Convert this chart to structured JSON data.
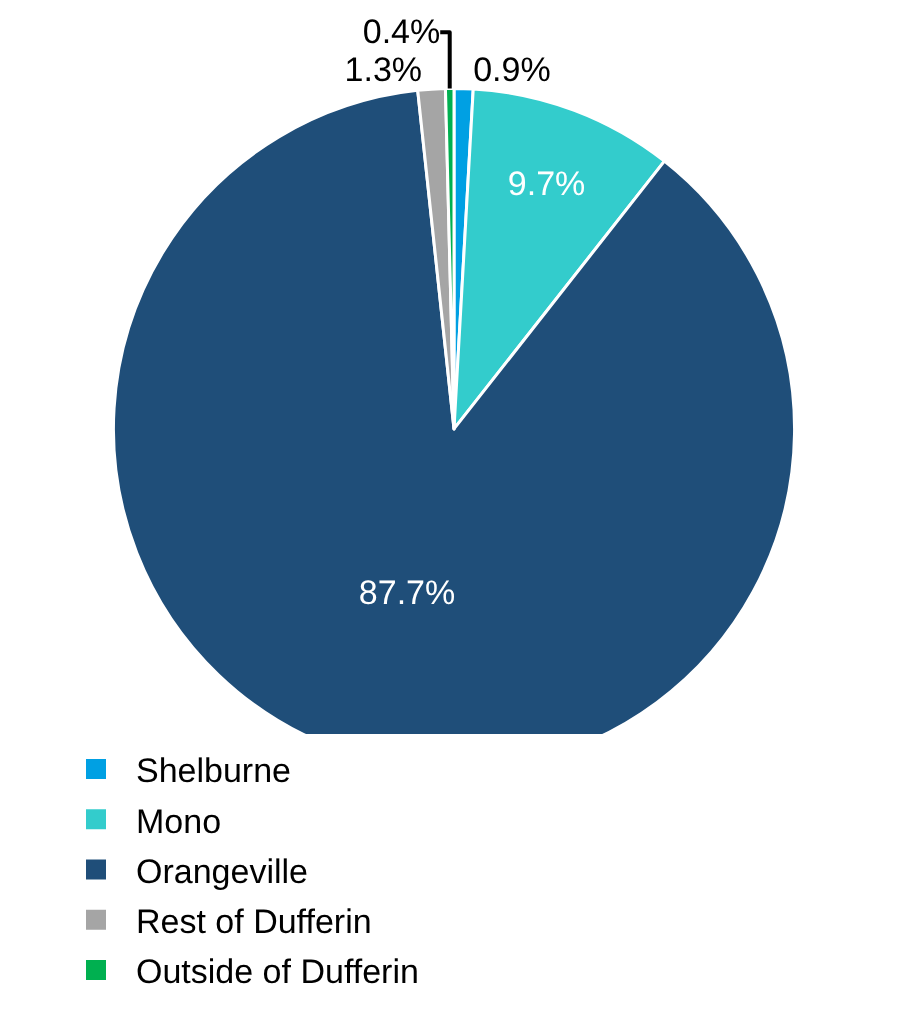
{
  "chart_data": {
    "type": "pie",
    "categories": [
      "Shelburne",
      "Mono",
      "Orangeville",
      "Rest of Dufferin",
      "Outside of Dufferin"
    ],
    "values": [
      0.9,
      9.7,
      87.7,
      1.3,
      0.4
    ],
    "colors": [
      "#00a0e3",
      "#33cccc",
      "#1f4e79",
      "#a5a5a5",
      "#00b050"
    ],
    "value_labels": [
      "0.9%",
      "9.7%",
      "87.7%",
      "1.3%",
      "0.4%"
    ],
    "legend": "bottom"
  }
}
